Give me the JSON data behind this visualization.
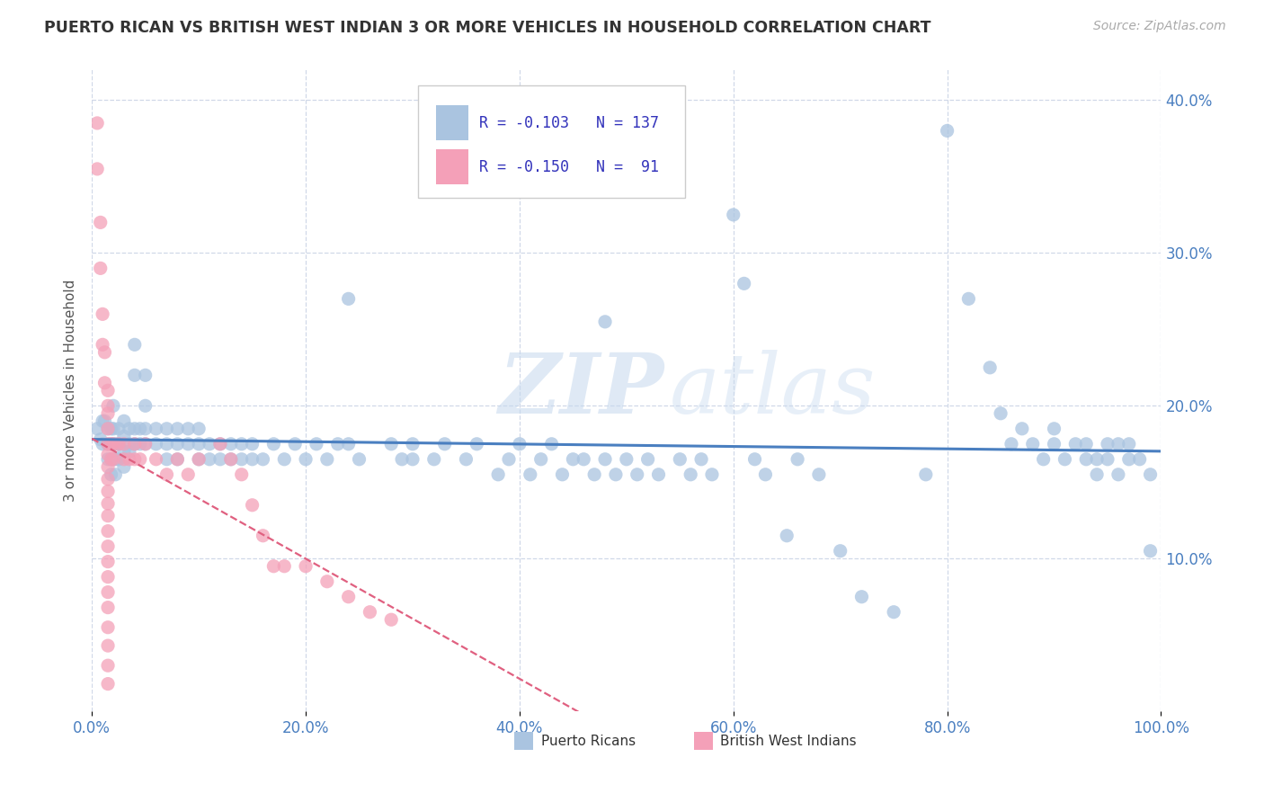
{
  "title": "PUERTO RICAN VS BRITISH WEST INDIAN 3 OR MORE VEHICLES IN HOUSEHOLD CORRELATION CHART",
  "source": "Source: ZipAtlas.com",
  "ylabel": "3 or more Vehicles in Household",
  "xlim": [
    0,
    1.0
  ],
  "ylim": [
    0,
    0.42
  ],
  "xticks": [
    0.0,
    0.2,
    0.4,
    0.6,
    0.8,
    1.0
  ],
  "xtick_labels": [
    "0.0%",
    "20.0%",
    "40.0%",
    "60.0%",
    "80.0%",
    "100.0%"
  ],
  "yticks": [
    0.1,
    0.2,
    0.3,
    0.4
  ],
  "ytick_labels": [
    "10.0%",
    "20.0%",
    "30.0%",
    "40.0%"
  ],
  "color_blue": "#aac4e0",
  "color_pink": "#f4a0b8",
  "trend_blue": "#4a7fc0",
  "trend_pink": "#e06080",
  "blue_scatter": [
    [
      0.005,
      0.185
    ],
    [
      0.008,
      0.178
    ],
    [
      0.01,
      0.19
    ],
    [
      0.01,
      0.175
    ],
    [
      0.012,
      0.19
    ],
    [
      0.015,
      0.185
    ],
    [
      0.015,
      0.175
    ],
    [
      0.015,
      0.165
    ],
    [
      0.018,
      0.185
    ],
    [
      0.018,
      0.175
    ],
    [
      0.018,
      0.165
    ],
    [
      0.018,
      0.155
    ],
    [
      0.02,
      0.2
    ],
    [
      0.02,
      0.185
    ],
    [
      0.02,
      0.175
    ],
    [
      0.02,
      0.165
    ],
    [
      0.022,
      0.175
    ],
    [
      0.022,
      0.165
    ],
    [
      0.022,
      0.155
    ],
    [
      0.025,
      0.185
    ],
    [
      0.025,
      0.175
    ],
    [
      0.025,
      0.165
    ],
    [
      0.03,
      0.19
    ],
    [
      0.03,
      0.18
    ],
    [
      0.03,
      0.17
    ],
    [
      0.03,
      0.16
    ],
    [
      0.035,
      0.185
    ],
    [
      0.035,
      0.175
    ],
    [
      0.035,
      0.17
    ],
    [
      0.04,
      0.24
    ],
    [
      0.04,
      0.22
    ],
    [
      0.04,
      0.185
    ],
    [
      0.04,
      0.175
    ],
    [
      0.045,
      0.185
    ],
    [
      0.045,
      0.175
    ],
    [
      0.05,
      0.22
    ],
    [
      0.05,
      0.2
    ],
    [
      0.05,
      0.185
    ],
    [
      0.05,
      0.175
    ],
    [
      0.06,
      0.185
    ],
    [
      0.06,
      0.175
    ],
    [
      0.07,
      0.185
    ],
    [
      0.07,
      0.175
    ],
    [
      0.07,
      0.165
    ],
    [
      0.08,
      0.185
    ],
    [
      0.08,
      0.175
    ],
    [
      0.08,
      0.165
    ],
    [
      0.09,
      0.185
    ],
    [
      0.09,
      0.175
    ],
    [
      0.1,
      0.185
    ],
    [
      0.1,
      0.175
    ],
    [
      0.1,
      0.165
    ],
    [
      0.11,
      0.175
    ],
    [
      0.11,
      0.165
    ],
    [
      0.12,
      0.175
    ],
    [
      0.12,
      0.165
    ],
    [
      0.13,
      0.175
    ],
    [
      0.13,
      0.165
    ],
    [
      0.14,
      0.175
    ],
    [
      0.14,
      0.165
    ],
    [
      0.15,
      0.175
    ],
    [
      0.15,
      0.165
    ],
    [
      0.16,
      0.165
    ],
    [
      0.17,
      0.175
    ],
    [
      0.18,
      0.165
    ],
    [
      0.19,
      0.175
    ],
    [
      0.2,
      0.165
    ],
    [
      0.21,
      0.175
    ],
    [
      0.22,
      0.165
    ],
    [
      0.23,
      0.175
    ],
    [
      0.24,
      0.27
    ],
    [
      0.24,
      0.175
    ],
    [
      0.25,
      0.165
    ],
    [
      0.28,
      0.175
    ],
    [
      0.29,
      0.165
    ],
    [
      0.3,
      0.175
    ],
    [
      0.3,
      0.165
    ],
    [
      0.32,
      0.165
    ],
    [
      0.33,
      0.175
    ],
    [
      0.35,
      0.165
    ],
    [
      0.36,
      0.175
    ],
    [
      0.38,
      0.155
    ],
    [
      0.39,
      0.165
    ],
    [
      0.4,
      0.175
    ],
    [
      0.41,
      0.155
    ],
    [
      0.42,
      0.165
    ],
    [
      0.43,
      0.175
    ],
    [
      0.44,
      0.155
    ],
    [
      0.45,
      0.165
    ],
    [
      0.46,
      0.165
    ],
    [
      0.47,
      0.155
    ],
    [
      0.48,
      0.255
    ],
    [
      0.48,
      0.165
    ],
    [
      0.49,
      0.155
    ],
    [
      0.5,
      0.165
    ],
    [
      0.51,
      0.155
    ],
    [
      0.52,
      0.165
    ],
    [
      0.53,
      0.155
    ],
    [
      0.55,
      0.165
    ],
    [
      0.56,
      0.155
    ],
    [
      0.57,
      0.165
    ],
    [
      0.58,
      0.155
    ],
    [
      0.6,
      0.325
    ],
    [
      0.61,
      0.28
    ],
    [
      0.62,
      0.165
    ],
    [
      0.63,
      0.155
    ],
    [
      0.65,
      0.115
    ],
    [
      0.66,
      0.165
    ],
    [
      0.68,
      0.155
    ],
    [
      0.7,
      0.105
    ],
    [
      0.72,
      0.075
    ],
    [
      0.75,
      0.065
    ],
    [
      0.78,
      0.155
    ],
    [
      0.8,
      0.38
    ],
    [
      0.82,
      0.27
    ],
    [
      0.84,
      0.225
    ],
    [
      0.85,
      0.195
    ],
    [
      0.86,
      0.175
    ],
    [
      0.87,
      0.185
    ],
    [
      0.88,
      0.175
    ],
    [
      0.89,
      0.165
    ],
    [
      0.9,
      0.185
    ],
    [
      0.9,
      0.175
    ],
    [
      0.91,
      0.165
    ],
    [
      0.92,
      0.175
    ],
    [
      0.93,
      0.165
    ],
    [
      0.93,
      0.175
    ],
    [
      0.94,
      0.155
    ],
    [
      0.94,
      0.165
    ],
    [
      0.95,
      0.175
    ],
    [
      0.95,
      0.165
    ],
    [
      0.96,
      0.175
    ],
    [
      0.96,
      0.155
    ],
    [
      0.97,
      0.165
    ],
    [
      0.97,
      0.175
    ],
    [
      0.98,
      0.165
    ],
    [
      0.99,
      0.155
    ],
    [
      0.99,
      0.105
    ]
  ],
  "pink_scatter": [
    [
      0.005,
      0.385
    ],
    [
      0.005,
      0.355
    ],
    [
      0.008,
      0.32
    ],
    [
      0.008,
      0.29
    ],
    [
      0.01,
      0.26
    ],
    [
      0.01,
      0.24
    ],
    [
      0.012,
      0.235
    ],
    [
      0.012,
      0.215
    ],
    [
      0.015,
      0.21
    ],
    [
      0.015,
      0.2
    ],
    [
      0.015,
      0.195
    ],
    [
      0.015,
      0.185
    ],
    [
      0.015,
      0.175
    ],
    [
      0.015,
      0.168
    ],
    [
      0.015,
      0.16
    ],
    [
      0.015,
      0.152
    ],
    [
      0.015,
      0.144
    ],
    [
      0.015,
      0.136
    ],
    [
      0.015,
      0.128
    ],
    [
      0.015,
      0.118
    ],
    [
      0.015,
      0.108
    ],
    [
      0.015,
      0.098
    ],
    [
      0.015,
      0.088
    ],
    [
      0.015,
      0.078
    ],
    [
      0.015,
      0.068
    ],
    [
      0.015,
      0.055
    ],
    [
      0.015,
      0.043
    ],
    [
      0.015,
      0.03
    ],
    [
      0.015,
      0.018
    ],
    [
      0.018,
      0.175
    ],
    [
      0.018,
      0.165
    ],
    [
      0.02,
      0.175
    ],
    [
      0.02,
      0.165
    ],
    [
      0.025,
      0.175
    ],
    [
      0.03,
      0.165
    ],
    [
      0.03,
      0.175
    ],
    [
      0.035,
      0.165
    ],
    [
      0.04,
      0.175
    ],
    [
      0.04,
      0.165
    ],
    [
      0.045,
      0.165
    ],
    [
      0.05,
      0.175
    ],
    [
      0.06,
      0.165
    ],
    [
      0.07,
      0.155
    ],
    [
      0.08,
      0.165
    ],
    [
      0.09,
      0.155
    ],
    [
      0.1,
      0.165
    ],
    [
      0.12,
      0.175
    ],
    [
      0.13,
      0.165
    ],
    [
      0.14,
      0.155
    ],
    [
      0.15,
      0.135
    ],
    [
      0.16,
      0.115
    ],
    [
      0.17,
      0.095
    ],
    [
      0.18,
      0.095
    ],
    [
      0.2,
      0.095
    ],
    [
      0.22,
      0.085
    ],
    [
      0.24,
      0.075
    ],
    [
      0.26,
      0.065
    ],
    [
      0.28,
      0.06
    ]
  ],
  "background_color": "#ffffff",
  "grid_color": "#d0d8e8",
  "title_color": "#333333",
  "axis_label_color": "#555555",
  "tick_color": "#4a7fc0",
  "source_color": "#aaaaaa",
  "legend_color": "#3333bb",
  "watermark": "ZIPatlas"
}
